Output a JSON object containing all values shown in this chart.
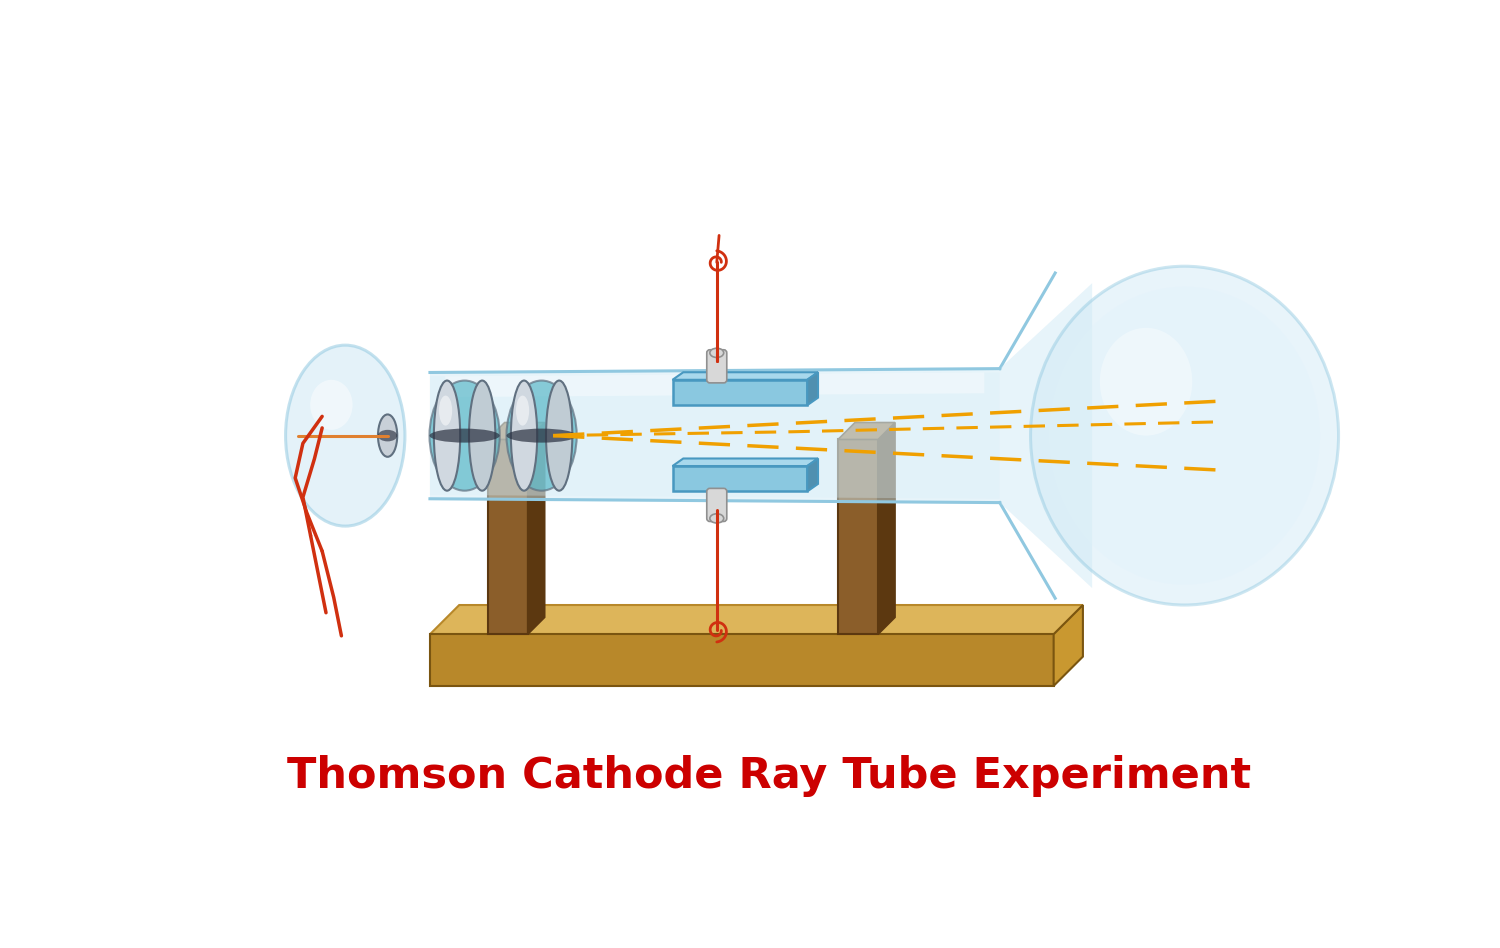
{
  "title": "Thomson Cathode Ray Tube Experiment",
  "title_color": "#cc0000",
  "title_fontsize": 31,
  "bg_color": "#ffffff",
  "glass_face": "#cde8f5",
  "glass_edge": "#90c8e0",
  "glass_alpha": 0.48,
  "wood_top": "#ddb55a",
  "wood_front": "#b8882a",
  "wood_side": "#c99830",
  "support_face": "#8b5e2a",
  "support_side": "#5c3810",
  "support_top": "#a07038",
  "elec_face": "#b8c4cc",
  "elec_edge": "#607080",
  "elec_dark": "#2a3040",
  "elec_teal": "#5ab8c8",
  "plate_face": "#8ac8e0",
  "plate_edge": "#4898c0",
  "plate_top": "#a8d8ec",
  "plate_side": "#5090b0",
  "wire_red": "#d03010",
  "wire_orange": "#e08030",
  "beam_color": "#f0a000",
  "beam_dash": [
    9,
    5
  ],
  "ins_face": "#d8d8d8",
  "ins_edge": "#909090"
}
